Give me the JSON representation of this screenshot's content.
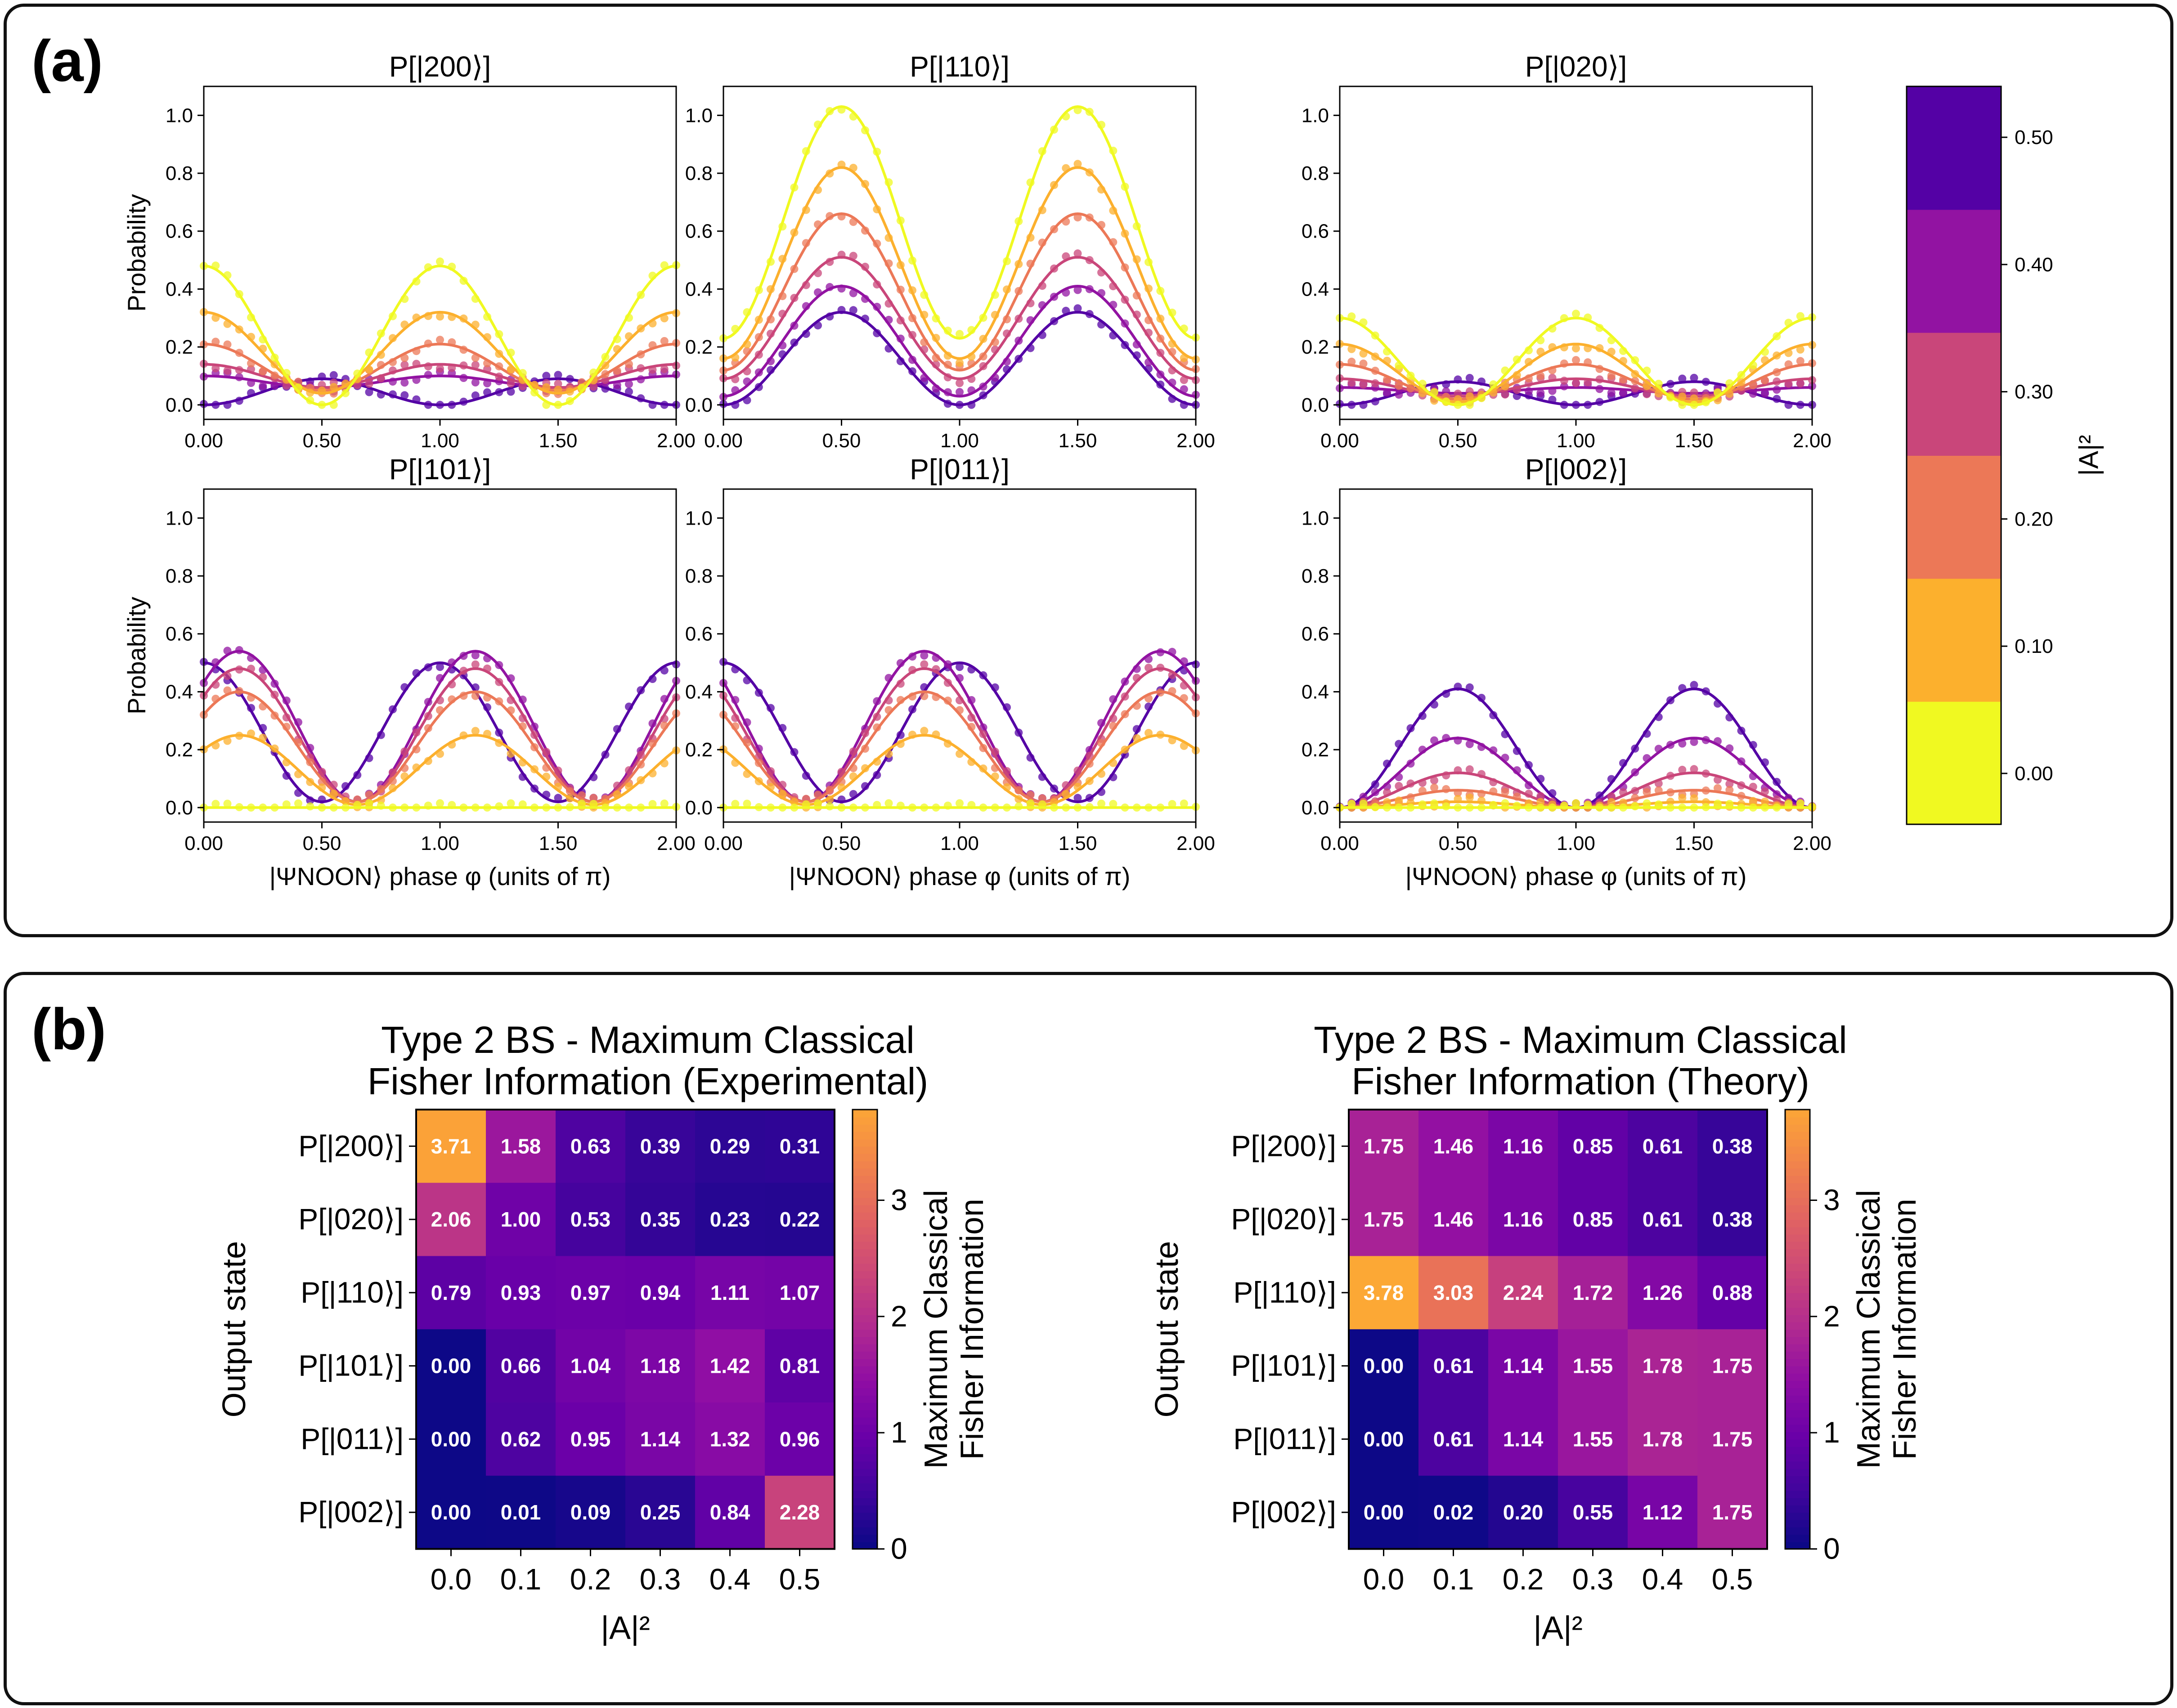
{
  "panel_a": {
    "label": "(a)",
    "colorbar": {
      "label": "|A|²",
      "ticks": [
        "0.00",
        "0.10",
        "0.20",
        "0.30",
        "0.40",
        "0.50"
      ],
      "levels": [
        0.0,
        0.1,
        0.2,
        0.3,
        0.4,
        0.5
      ],
      "colors": [
        "#f0f921",
        "#fcb02d",
        "#ec7857",
        "#c9467a",
        "#9213a2",
        "#5401a5"
      ]
    }
  },
  "panel_b": {
    "label": "(b)"
  },
  "chart_data": [
    {
      "type": "line",
      "title": "P[|200⟩]",
      "xlabel": "",
      "ylabel": "Probability",
      "xlim": [
        0,
        2
      ],
      "ylim": [
        -0.05,
        1.1
      ],
      "xticks": [
        "0.00",
        "0.50",
        "1.00",
        "1.50",
        "2.00"
      ],
      "yticks": [
        "0.0",
        "0.2",
        "0.4",
        "0.6",
        "0.8",
        "1.0"
      ],
      "series_model": {
        "offset": [
          0.24,
          0.18,
          0.13,
          0.1,
          0.08,
          0.045
        ],
        "amp": [
          0.24,
          0.14,
          0.08,
          0.04,
          0.02,
          -0.045
        ],
        "freq": 2,
        "phase": 0
      },
      "legend_var": "|A|²",
      "series_levels": [
        0.0,
        0.1,
        0.2,
        0.3,
        0.4,
        0.5
      ]
    },
    {
      "type": "line",
      "title": "P[|110⟩]",
      "xlabel": "",
      "ylabel": "",
      "xlim": [
        0,
        2
      ],
      "ylim": [
        -0.05,
        1.1
      ],
      "xticks": [
        "0.00",
        "0.50",
        "1.00",
        "1.50",
        "2.00"
      ],
      "yticks": [
        "0.0",
        "0.2",
        "0.4",
        "0.6",
        "0.8",
        "1.0"
      ],
      "series_model": {
        "offset": [
          0.63,
          0.49,
          0.39,
          0.3,
          0.22,
          0.16
        ],
        "amp": [
          -0.4,
          -0.33,
          -0.27,
          -0.21,
          -0.19,
          -0.16
        ],
        "freq": 2,
        "phase": 0
      },
      "series_levels": [
        0.0,
        0.1,
        0.2,
        0.3,
        0.4,
        0.5
      ]
    },
    {
      "type": "line",
      "title": "P[|020⟩]",
      "xlabel": "",
      "ylabel": "",
      "xlim": [
        0,
        2
      ],
      "ylim": [
        -0.05,
        1.1
      ],
      "xticks": [
        "0.00",
        "0.50",
        "1.00",
        "1.50",
        "2.00"
      ],
      "yticks": [
        "0.0",
        "0.2",
        "0.4",
        "0.6",
        "0.8",
        "1.0"
      ],
      "series_model": {
        "offset": [
          0.15,
          0.11,
          0.08,
          0.06,
          0.05,
          0.04
        ],
        "amp": [
          0.15,
          0.1,
          0.06,
          0.03,
          0.01,
          -0.04
        ],
        "freq": 2,
        "phase": 0
      },
      "series_levels": [
        0.0,
        0.1,
        0.2,
        0.3,
        0.4,
        0.5
      ]
    },
    {
      "type": "line",
      "title": "P[|101⟩]",
      "xlabel": "|ΨNOON⟩ phase φ (units of π)",
      "ylabel": "Probability",
      "xlim": [
        0,
        2
      ],
      "ylim": [
        -0.05,
        1.1
      ],
      "xticks": [
        "0.00",
        "0.50",
        "1.00",
        "1.50",
        "2.00"
      ],
      "yticks": [
        "0.0",
        "0.2",
        "0.4",
        "0.6",
        "0.8",
        "1.0"
      ],
      "series_model": {
        "offset": [
          0.0,
          0.13,
          0.21,
          0.25,
          0.28,
          0.26
        ],
        "amp": [
          0.0,
          0.12,
          0.19,
          0.23,
          0.26,
          0.24
        ],
        "freq": 2,
        "phase_shift": [
          0,
          0.15,
          0.15,
          0.15,
          0.15,
          0.0
        ]
      },
      "series_levels": [
        0.0,
        0.1,
        0.2,
        0.3,
        0.4,
        0.5
      ]
    },
    {
      "type": "line",
      "title": "P[|011⟩]",
      "xlabel": "|ΨNOON⟩ phase φ (units of π)",
      "ylabel": "",
      "xlim": [
        0,
        2
      ],
      "ylim": [
        -0.05,
        1.1
      ],
      "xticks": [
        "0.00",
        "0.50",
        "1.00",
        "1.50",
        "2.00"
      ],
      "yticks": [
        "0.0",
        "0.2",
        "0.4",
        "0.6",
        "0.8",
        "1.0"
      ],
      "series_model": {
        "offset": [
          0.0,
          0.13,
          0.21,
          0.25,
          0.28,
          0.26
        ],
        "amp": [
          0.0,
          0.12,
          0.19,
          0.23,
          0.26,
          0.24
        ],
        "freq": 2,
        "phase_shift": [
          0,
          -0.15,
          -0.15,
          -0.15,
          -0.15,
          0.0
        ]
      },
      "series_levels": [
        0.0,
        0.1,
        0.2,
        0.3,
        0.4,
        0.5
      ]
    },
    {
      "type": "line",
      "title": "P[|002⟩]",
      "xlabel": "|ΨNOON⟩ phase φ (units of π)",
      "ylabel": "",
      "xlim": [
        0,
        2
      ],
      "ylim": [
        -0.05,
        1.1
      ],
      "xticks": [
        "0.00",
        "0.50",
        "1.00",
        "1.50",
        "2.00"
      ],
      "yticks": [
        "0.0",
        "0.2",
        "0.4",
        "0.6",
        "0.8",
        "1.0"
      ],
      "series_model": {
        "offset": [
          0.0,
          0.01,
          0.03,
          0.06,
          0.12,
          0.205
        ],
        "amp": [
          0.0,
          -0.01,
          -0.03,
          -0.06,
          -0.12,
          -0.205
        ],
        "freq": 2,
        "phase": 0
      },
      "series_levels": [
        0.0,
        0.1,
        0.2,
        0.3,
        0.4,
        0.5
      ]
    },
    {
      "type": "heatmap",
      "title": "Type 2 BS - Maximum Classical\nFisher Information (Experimental)",
      "xlabel": "|A|²",
      "ylabel": "Output state",
      "x_categories": [
        "0.0",
        "0.1",
        "0.2",
        "0.3",
        "0.4",
        "0.5"
      ],
      "y_categories": [
        "P[|200⟩]",
        "P[|020⟩]",
        "P[|110⟩]",
        "P[|101⟩]",
        "P[|011⟩]",
        "P[|002⟩]"
      ],
      "values": [
        [
          3.71,
          1.58,
          0.63,
          0.39,
          0.29,
          0.31
        ],
        [
          2.06,
          1.0,
          0.53,
          0.35,
          0.23,
          0.22
        ],
        [
          0.79,
          0.93,
          0.97,
          0.94,
          1.11,
          1.07
        ],
        [
          0.0,
          0.66,
          1.04,
          1.18,
          1.42,
          0.81
        ],
        [
          0.0,
          0.62,
          0.95,
          1.14,
          1.32,
          0.96
        ],
        [
          0.0,
          0.01,
          0.09,
          0.25,
          0.84,
          2.28
        ]
      ],
      "colorbar": {
        "label": "Maximum Classical\nFisher Information",
        "ticks": [
          "0",
          "1",
          "2",
          "3"
        ],
        "range": [
          0,
          3.78
        ]
      }
    },
    {
      "type": "heatmap",
      "title": "Type 2 BS - Maximum Classical\nFisher Information (Theory)",
      "xlabel": "|A|²",
      "ylabel": "Output state",
      "x_categories": [
        "0.0",
        "0.1",
        "0.2",
        "0.3",
        "0.4",
        "0.5"
      ],
      "y_categories": [
        "P[|200⟩]",
        "P[|020⟩]",
        "P[|110⟩]",
        "P[|101⟩]",
        "P[|011⟩]",
        "P[|002⟩]"
      ],
      "values": [
        [
          1.75,
          1.46,
          1.16,
          0.85,
          0.61,
          0.38
        ],
        [
          1.75,
          1.46,
          1.16,
          0.85,
          0.61,
          0.38
        ],
        [
          3.78,
          3.03,
          2.24,
          1.72,
          1.26,
          0.88
        ],
        [
          0.0,
          0.61,
          1.14,
          1.55,
          1.78,
          1.75
        ],
        [
          0.0,
          0.61,
          1.14,
          1.55,
          1.78,
          1.75
        ],
        [
          0.0,
          0.02,
          0.2,
          0.55,
          1.12,
          1.75
        ]
      ],
      "colorbar": {
        "label": "Maximum Classical\nFisher Information",
        "ticks": [
          "0",
          "1",
          "2",
          "3"
        ],
        "range": [
          0,
          3.78
        ]
      }
    }
  ]
}
